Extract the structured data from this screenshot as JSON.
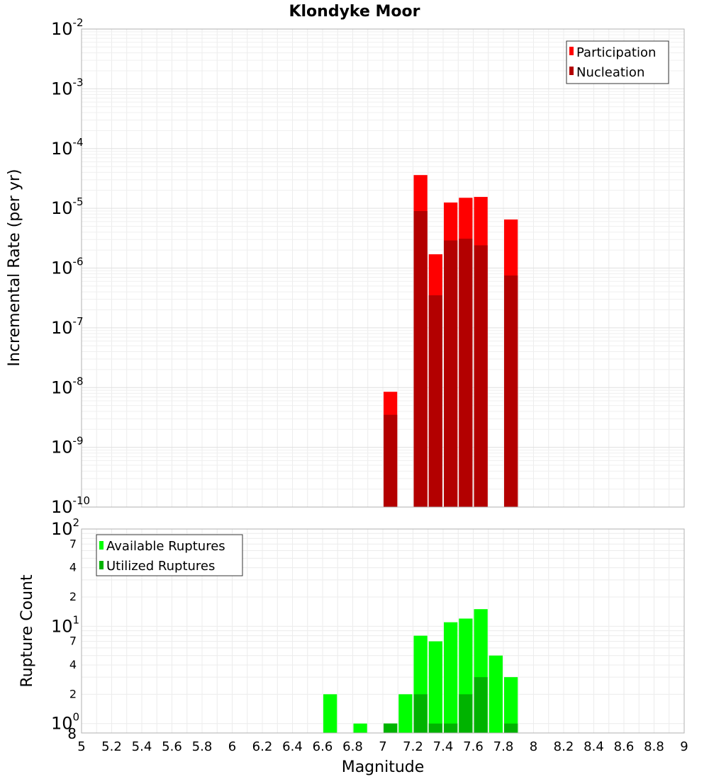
{
  "chart_data": [
    {
      "type": "bar",
      "title": "Klondyke Moor",
      "xlabel": "",
      "ylabel": "Incremental Rate (per yr)",
      "yscale": "log",
      "ylim": [
        1e-10,
        0.01
      ],
      "xlim": [
        5,
        9
      ],
      "ytick_exponents": [
        "-2",
        "-3",
        "-4",
        "-5",
        "-6",
        "-7",
        "-8",
        "-9",
        "-10"
      ],
      "ytick_base": "10",
      "grid": true,
      "legend_position": "top-right",
      "legend": [
        "Participation",
        "Nucleation"
      ],
      "series": [
        {
          "name": "Participation",
          "color": "#ff0000",
          "x": [
            7.05,
            7.25,
            7.35,
            7.45,
            7.55,
            7.65,
            7.85
          ],
          "values": [
            8.5e-09,
            3.6e-05,
            1.7e-06,
            1.25e-05,
            1.5e-05,
            1.55e-05,
            6.5e-06
          ]
        },
        {
          "name": "Nucleation",
          "color": "#b30000",
          "x": [
            7.05,
            7.25,
            7.35,
            7.45,
            7.55,
            7.65,
            7.85
          ],
          "values": [
            3.5e-09,
            9e-06,
            3.5e-07,
            2.9e-06,
            3.1e-06,
            2.4e-06,
            7.5e-07
          ]
        }
      ]
    },
    {
      "type": "bar",
      "title": "",
      "xlabel": "Magnitude",
      "ylabel": "Rupture Count",
      "yscale": "log",
      "ylim": [
        0.8,
        100
      ],
      "xlim": [
        5,
        9
      ],
      "xticks": [
        "5",
        "5.2",
        "5.4",
        "5.6",
        "5.8",
        "6",
        "6.2",
        "6.4",
        "6.6",
        "6.8",
        "7",
        "7.2",
        "7.4",
        "7.6",
        "7.8",
        "8",
        "8.2",
        "8.4",
        "8.6",
        "8.8",
        "9"
      ],
      "minor_ytick_labels": [
        "7",
        "4",
        "2",
        "7",
        "4",
        "2",
        "8"
      ],
      "grid": true,
      "legend_position": "top-left",
      "legend": [
        "Available Ruptures",
        "Utilized Ruptures"
      ],
      "series": [
        {
          "name": "Available Ruptures",
          "color": "#00ff00",
          "x": [
            6.65,
            6.85,
            7.05,
            7.15,
            7.25,
            7.35,
            7.45,
            7.55,
            7.65,
            7.75,
            7.85
          ],
          "values": [
            2,
            1,
            1,
            2,
            8,
            7,
            11,
            12,
            15,
            5,
            3
          ]
        },
        {
          "name": "Utilized Ruptures",
          "color": "#00b300",
          "x": [
            7.05,
            7.25,
            7.35,
            7.45,
            7.55,
            7.65,
            7.85
          ],
          "values": [
            1,
            2,
            1,
            1,
            2,
            3,
            1
          ]
        }
      ]
    }
  ]
}
